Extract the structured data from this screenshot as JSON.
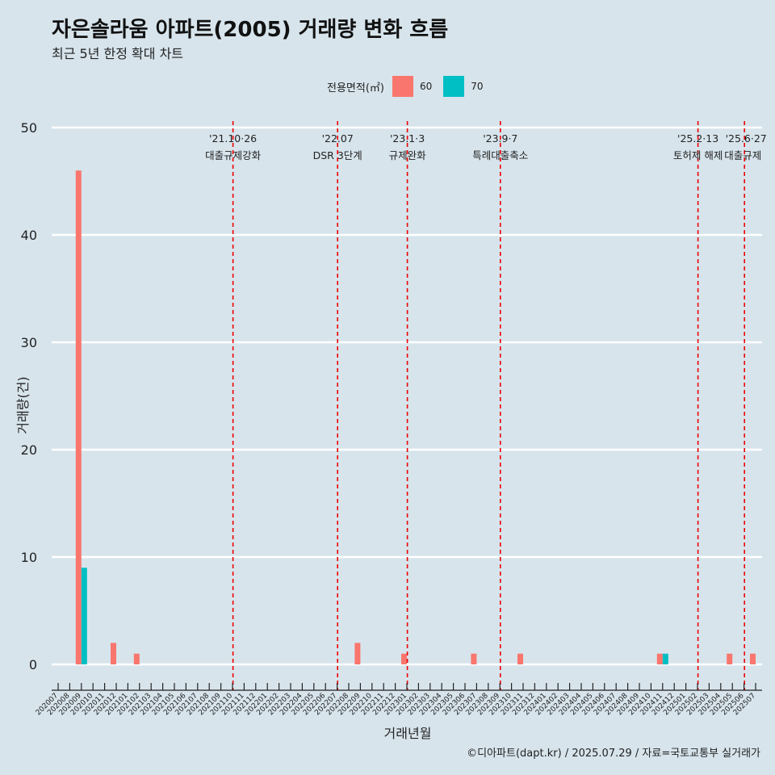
{
  "title": "자은솔라움 아파트(2005) 거래량 변화 흐름",
  "subtitle": "최근 5년 한정 확대 차트",
  "legend": {
    "title": "전용면적(㎡)",
    "items": [
      {
        "label": "60",
        "color": "#f8766d"
      },
      {
        "label": "70",
        "color": "#00bfc4"
      }
    ]
  },
  "caption": "©디아파트(dapt.kr) / 2025.07.29 / 자료=국토교통부 실거래가",
  "colors": {
    "background": "#d7e4ec",
    "grid": "#ffffff",
    "event_line": "#ee0000"
  },
  "chart_data": {
    "type": "bar",
    "xlabel": "거래년월",
    "ylabel": "거래량(건)",
    "ylim": [
      0,
      50
    ],
    "yticks": [
      0,
      10,
      20,
      30,
      40,
      50
    ],
    "categories": [
      "202007",
      "202008",
      "202009",
      "202010",
      "202011",
      "202012",
      "202101",
      "202102",
      "202103",
      "202104",
      "202105",
      "202106",
      "202107",
      "202108",
      "202109",
      "202110",
      "202111",
      "202112",
      "202201",
      "202202",
      "202203",
      "202204",
      "202205",
      "202206",
      "202207",
      "202208",
      "202209",
      "202210",
      "202211",
      "202212",
      "202301",
      "202302",
      "202303",
      "202304",
      "202305",
      "202306",
      "202307",
      "202308",
      "202309",
      "202310",
      "202311",
      "202312",
      "202401",
      "202402",
      "202403",
      "202404",
      "202405",
      "202406",
      "202407",
      "202408",
      "202409",
      "202410",
      "202411",
      "202412",
      "202501",
      "202502",
      "202503",
      "202504",
      "202505",
      "202506",
      "202507"
    ],
    "series": [
      {
        "name": "60",
        "color": "#f8766d",
        "points": [
          {
            "x": "202009",
            "y": 46
          },
          {
            "x": "202012",
            "y": 2
          },
          {
            "x": "202102",
            "y": 1
          },
          {
            "x": "202209",
            "y": 2
          },
          {
            "x": "202301",
            "y": 1
          },
          {
            "x": "202307",
            "y": 1
          },
          {
            "x": "202311",
            "y": 1
          },
          {
            "x": "202411",
            "y": 1
          },
          {
            "x": "202505",
            "y": 1
          },
          {
            "x": "202507",
            "y": 1
          }
        ]
      },
      {
        "name": "70",
        "color": "#00bfc4",
        "points": [
          {
            "x": "202009",
            "y": 9
          },
          {
            "x": "202411",
            "y": 1
          }
        ]
      }
    ],
    "events": [
      {
        "x": "202110",
        "date": "'21.10·26",
        "label": "대출규제강화"
      },
      {
        "x": "202207",
        "date": "'22.07",
        "label": "DSR 3단계"
      },
      {
        "x": "202301",
        "date": "'23.1·3",
        "label": "규제완화"
      },
      {
        "x": "202309",
        "date": "'23.9·7",
        "label": "특례대출축소"
      },
      {
        "x": "202502",
        "date": "'25.2·13",
        "label": "토허제 해제"
      },
      {
        "x": "202506",
        "date": "'25.6·27",
        "label": "대출규제"
      }
    ]
  }
}
